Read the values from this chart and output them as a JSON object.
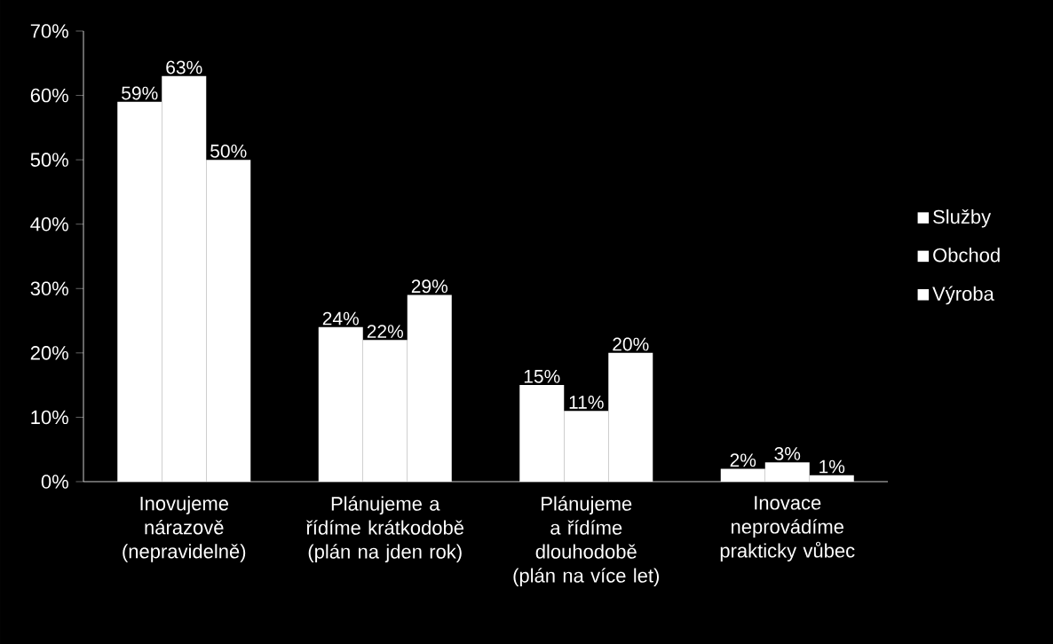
{
  "chart_data": {
    "type": "bar",
    "categories": [
      "Inovujeme nárazově (nepravidelně)",
      "Plánujeme a řídíme krátkodobě (plán na jden rok)",
      "Plánujeme a řídíme dlouhodobě (plán na více let)",
      "Inovace neprovádíme prakticky vůbec"
    ],
    "series": [
      {
        "name": "Služby",
        "color": "#ffffff",
        "values": [
          59,
          24,
          15,
          2
        ],
        "value_labels": [
          "59%",
          "24%",
          "15%",
          "2%"
        ]
      },
      {
        "name": "Obchod",
        "color": "#ffffff",
        "values": [
          63,
          22,
          11,
          3
        ],
        "value_labels": [
          "63%",
          "22%",
          "11%",
          "3%"
        ]
      },
      {
        "name": "Výroba",
        "color": "#ffffff",
        "values": [
          50,
          29,
          20,
          1
        ],
        "value_labels": [
          "50%",
          "29%",
          "20%",
          "1%"
        ]
      }
    ],
    "ylim": [
      0,
      70
    ],
    "yticks": [
      {
        "value": 0,
        "label": "0%"
      },
      {
        "value": 10,
        "label": "10%"
      },
      {
        "value": 20,
        "label": "20%"
      },
      {
        "value": 30,
        "label": "30%"
      },
      {
        "value": 40,
        "label": "40%"
      },
      {
        "value": 50,
        "label": "50%"
      },
      {
        "value": 60,
        "label": "60%"
      },
      {
        "value": 70,
        "label": "70%"
      }
    ],
    "legend": "right"
  }
}
